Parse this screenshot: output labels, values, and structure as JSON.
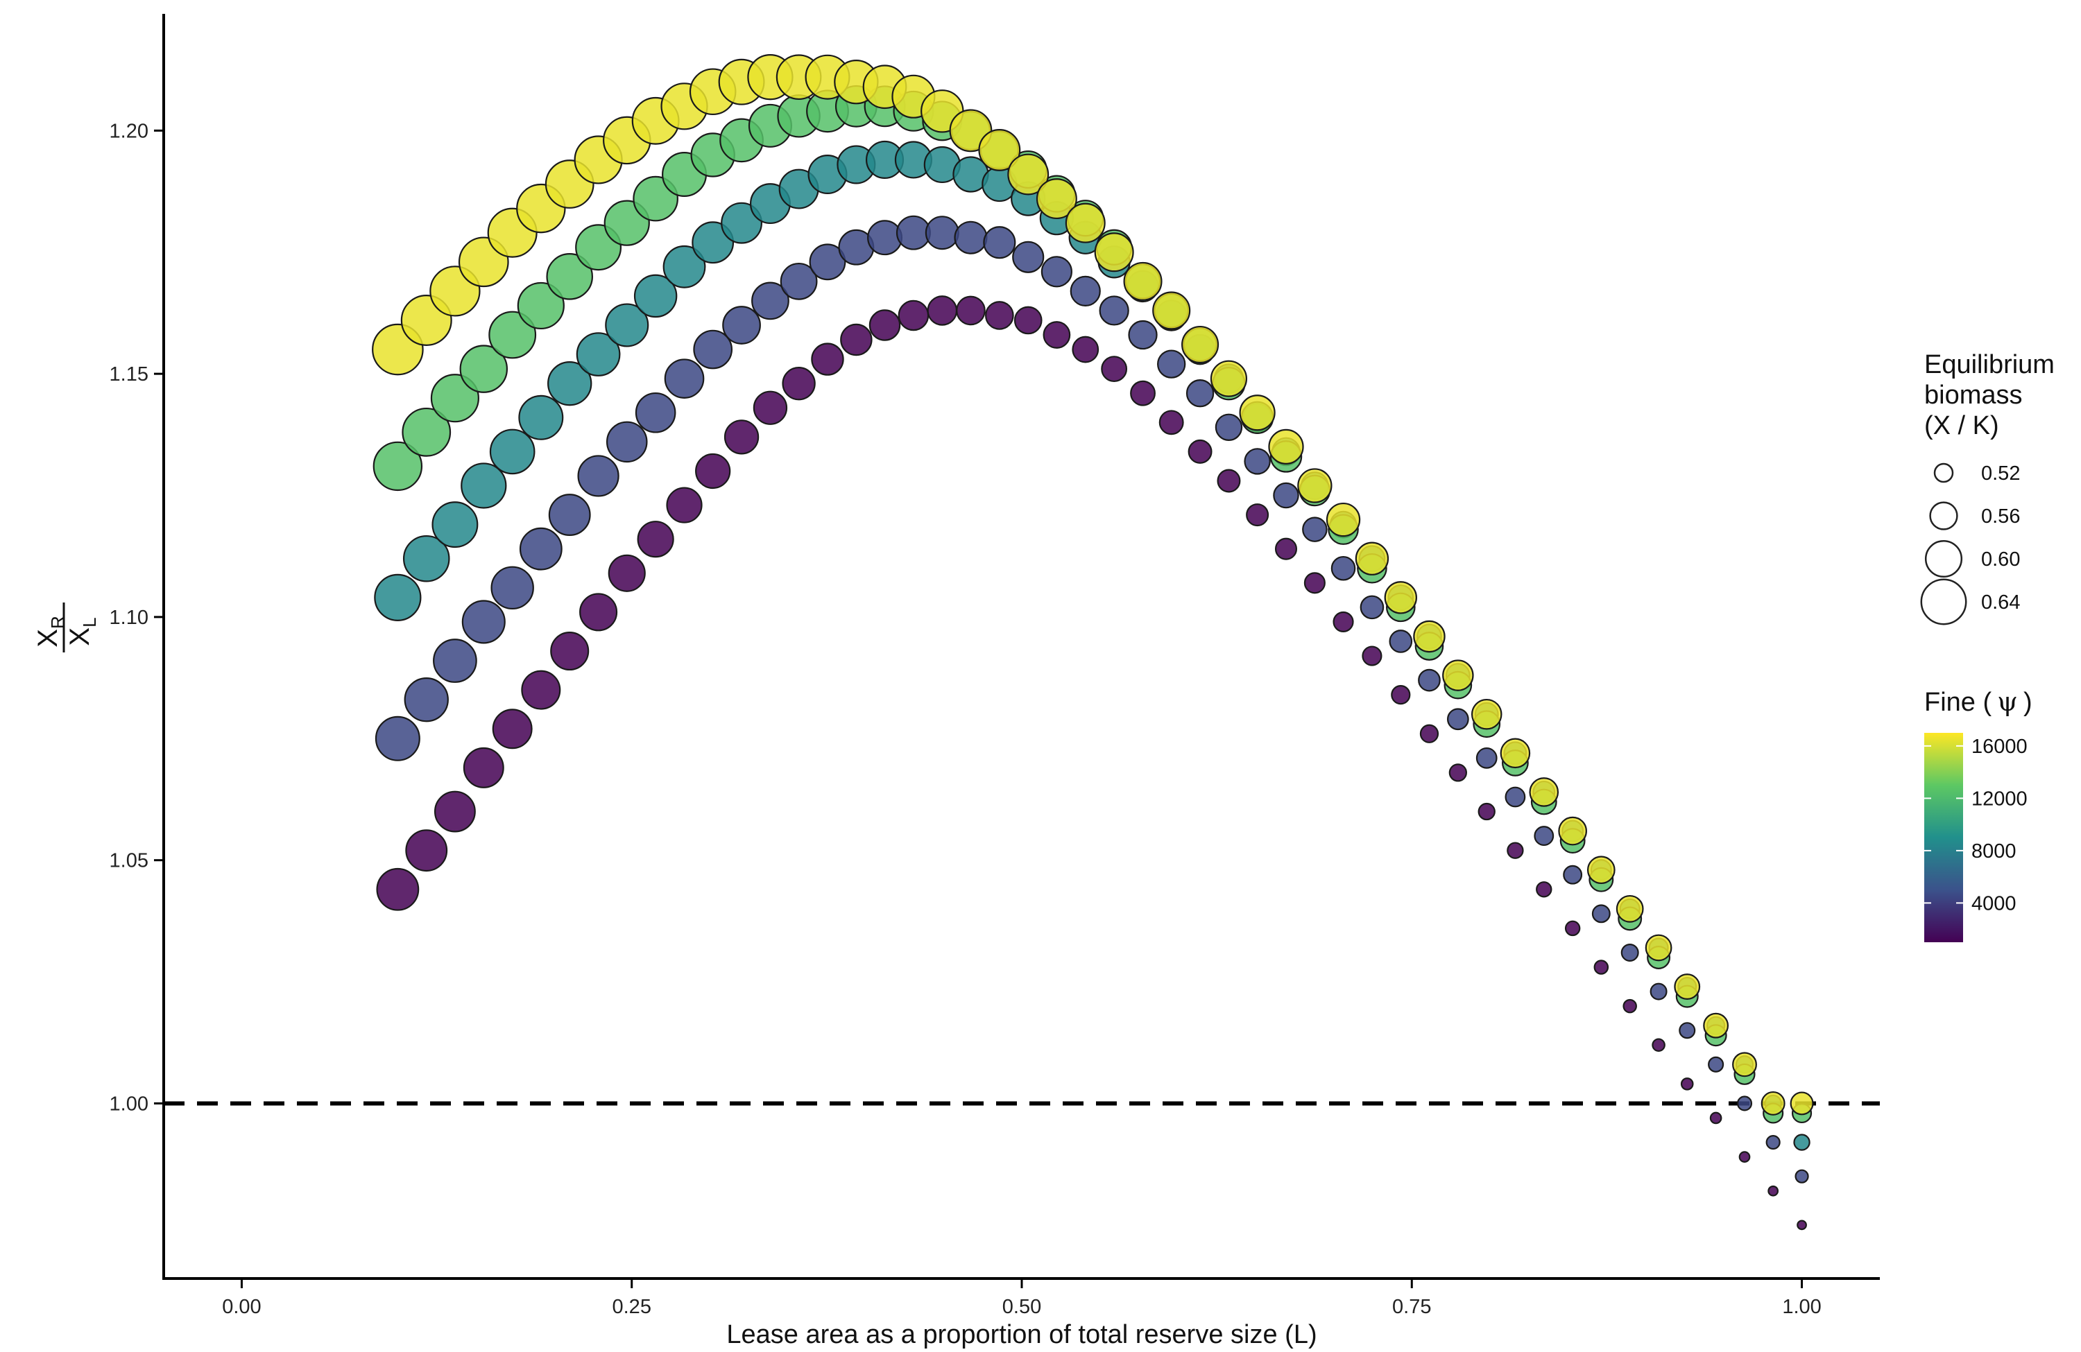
{
  "chart_data": {
    "type": "scatter",
    "title": "",
    "xlabel": "Lease area as a proportion of total reserve size (L)",
    "ylabel": {
      "numerator": "X",
      "numerator_sub": "R",
      "denominator": "X",
      "denominator_sub": "L"
    },
    "xlim": [
      -0.05,
      1.05
    ],
    "ylim": [
      0.964,
      1.224
    ],
    "xticks": [
      0.0,
      0.25,
      0.5,
      0.75,
      1.0
    ],
    "xtick_labels": [
      "0.00",
      "0.25",
      "0.50",
      "0.75",
      "1.00"
    ],
    "yticks": [
      1.0,
      1.05,
      1.1,
      1.15,
      1.2
    ],
    "ytick_labels": [
      "1.00",
      "1.05",
      "1.10",
      "1.15",
      "1.20"
    ],
    "reference_line": {
      "y": 1.0,
      "style": "dashed",
      "color": "#000000"
    },
    "grid": false,
    "legend_position": "right",
    "size_legend": {
      "title_lines": [
        "Equilibrium",
        "biomass",
        "(X / K)"
      ],
      "entries": [
        {
          "label": "0.52",
          "value": 0.52
        },
        {
          "label": "0.56",
          "value": 0.56
        },
        {
          "label": "0.60",
          "value": 0.6
        },
        {
          "label": "0.64",
          "value": 0.64
        }
      ]
    },
    "color_legend": {
      "title_prefix": "Fine (",
      "title_symbol": "ψ",
      "title_suffix": ")",
      "ticks": [
        {
          "label": "16000",
          "value": 16000
        },
        {
          "label": "12000",
          "value": 12000
        },
        {
          "label": "8000",
          "value": 8000
        },
        {
          "label": "4000",
          "value": 4000
        }
      ],
      "range": [
        1000,
        17000
      ],
      "colormap": "viridis"
    },
    "colormap_stops": [
      "#440154",
      "#3b528b",
      "#21908c",
      "#5dc863",
      "#fde725"
    ],
    "x": [
      0.1,
      0.1184,
      0.1367,
      0.1551,
      0.1735,
      0.1918,
      0.2102,
      0.2286,
      0.2469,
      0.2653,
      0.2837,
      0.302,
      0.3204,
      0.3388,
      0.3571,
      0.3755,
      0.3939,
      0.4122,
      0.4306,
      0.449,
      0.4673,
      0.4857,
      0.5041,
      0.5224,
      0.5408,
      0.5592,
      0.5776,
      0.5959,
      0.6143,
      0.6327,
      0.651,
      0.6694,
      0.6878,
      0.7061,
      0.7245,
      0.7429,
      0.7612,
      0.7796,
      0.798,
      0.8163,
      0.8347,
      0.8531,
      0.8714,
      0.8898,
      0.9082,
      0.9265,
      0.9449,
      0.9633,
      0.9816,
      1.0
    ],
    "series": [
      {
        "fine": 1000,
        "y": [
          1.044,
          1.052,
          1.06,
          1.069,
          1.077,
          1.085,
          1.093,
          1.101,
          1.109,
          1.116,
          1.123,
          1.13,
          1.137,
          1.143,
          1.148,
          1.153,
          1.157,
          1.16,
          1.162,
          1.163,
          1.163,
          1.162,
          1.161,
          1.158,
          1.155,
          1.151,
          1.146,
          1.14,
          1.134,
          1.128,
          1.121,
          1.114,
          1.107,
          1.099,
          1.092,
          1.084,
          1.076,
          1.068,
          1.06,
          1.052,
          1.044,
          1.036,
          1.028,
          1.02,
          1.012,
          1.004,
          0.997,
          0.989,
          0.982,
          0.975
        ],
        "biomass": [
          0.625,
          0.622,
          0.619,
          0.616,
          0.613,
          0.61,
          0.607,
          0.604,
          0.601,
          0.598,
          0.595,
          0.592,
          0.589,
          0.586,
          0.583,
          0.58,
          0.577,
          0.574,
          0.571,
          0.568,
          0.565,
          0.562,
          0.559,
          0.556,
          0.553,
          0.55,
          0.547,
          0.544,
          0.541,
          0.538,
          0.535,
          0.532,
          0.529,
          0.526,
          0.523,
          0.52,
          0.517,
          0.514,
          0.511,
          0.508,
          0.505,
          0.502,
          0.499,
          0.496,
          0.493,
          0.49,
          0.487,
          0.484,
          0.481,
          0.478
        ]
      },
      {
        "fine": 4500,
        "y": [
          1.075,
          1.083,
          1.091,
          1.099,
          1.106,
          1.114,
          1.121,
          1.129,
          1.136,
          1.142,
          1.149,
          1.155,
          1.16,
          1.165,
          1.169,
          1.173,
          1.176,
          1.178,
          1.179,
          1.179,
          1.178,
          1.177,
          1.174,
          1.171,
          1.167,
          1.163,
          1.158,
          1.152,
          1.146,
          1.139,
          1.132,
          1.125,
          1.118,
          1.11,
          1.102,
          1.095,
          1.087,
          1.079,
          1.071,
          1.063,
          1.055,
          1.047,
          1.039,
          1.031,
          1.023,
          1.015,
          1.008,
          1.0,
          0.992,
          0.985
        ],
        "biomass": [
          0.635,
          0.633,
          0.631,
          0.629,
          0.627,
          0.625,
          0.622,
          0.62,
          0.618,
          0.615,
          0.612,
          0.609,
          0.606,
          0.603,
          0.6,
          0.597,
          0.594,
          0.591,
          0.588,
          0.585,
          0.582,
          0.579,
          0.576,
          0.573,
          0.57,
          0.567,
          0.564,
          0.561,
          0.558,
          0.555,
          0.552,
          0.549,
          0.546,
          0.543,
          0.54,
          0.537,
          0.534,
          0.531,
          0.528,
          0.525,
          0.522,
          0.519,
          0.516,
          0.513,
          0.51,
          0.507,
          0.504,
          0.501,
          0.498,
          0.495
        ]
      },
      {
        "fine": 8500,
        "y": [
          1.104,
          1.112,
          1.119,
          1.127,
          1.134,
          1.141,
          1.148,
          1.154,
          1.16,
          1.166,
          1.172,
          1.177,
          1.181,
          1.185,
          1.188,
          1.191,
          1.193,
          1.194,
          1.194,
          1.193,
          1.191,
          1.189,
          1.186,
          1.182,
          1.178,
          1.173,
          1.168,
          1.162,
          1.155,
          1.149,
          1.141,
          1.134,
          1.127,
          1.119,
          1.112,
          1.104,
          1.096,
          1.088,
          1.08,
          1.072,
          1.064,
          1.056,
          1.048,
          1.04,
          1.032,
          1.024,
          1.016,
          1.008,
          1.0,
          0.992
        ],
        "biomass": [
          0.645,
          0.643,
          0.641,
          0.639,
          0.637,
          0.635,
          0.633,
          0.631,
          0.629,
          0.627,
          0.625,
          0.622,
          0.619,
          0.616,
          0.613,
          0.61,
          0.607,
          0.604,
          0.601,
          0.598,
          0.595,
          0.592,
          0.589,
          0.586,
          0.583,
          0.58,
          0.577,
          0.574,
          0.571,
          0.568,
          0.565,
          0.562,
          0.559,
          0.556,
          0.553,
          0.55,
          0.547,
          0.544,
          0.541,
          0.538,
          0.535,
          0.532,
          0.529,
          0.526,
          0.523,
          0.52,
          0.517,
          0.514,
          0.511,
          0.508
        ]
      },
      {
        "fine": 12500,
        "y": [
          1.131,
          1.138,
          1.145,
          1.151,
          1.158,
          1.164,
          1.17,
          1.176,
          1.181,
          1.186,
          1.191,
          1.195,
          1.198,
          1.201,
          1.203,
          1.204,
          1.205,
          1.205,
          1.204,
          1.202,
          1.2,
          1.196,
          1.192,
          1.187,
          1.182,
          1.176,
          1.169,
          1.163,
          1.156,
          1.148,
          1.141,
          1.133,
          1.126,
          1.118,
          1.11,
          1.102,
          1.094,
          1.086,
          1.078,
          1.07,
          1.062,
          1.054,
          1.046,
          1.038,
          1.03,
          1.022,
          1.014,
          1.006,
          0.998,
          0.998
        ],
        "biomass": [
          0.655,
          0.653,
          0.651,
          0.649,
          0.647,
          0.645,
          0.643,
          0.641,
          0.639,
          0.637,
          0.635,
          0.633,
          0.631,
          0.629,
          0.627,
          0.625,
          0.622,
          0.619,
          0.616,
          0.613,
          0.61,
          0.607,
          0.604,
          0.601,
          0.598,
          0.595,
          0.592,
          0.589,
          0.586,
          0.583,
          0.58,
          0.577,
          0.574,
          0.571,
          0.568,
          0.565,
          0.562,
          0.559,
          0.556,
          0.553,
          0.55,
          0.547,
          0.544,
          0.541,
          0.538,
          0.535,
          0.532,
          0.529,
          0.526,
          0.523
        ]
      },
      {
        "fine": 16500,
        "y": [
          1.155,
          1.161,
          1.167,
          1.173,
          1.179,
          1.184,
          1.189,
          1.194,
          1.198,
          1.202,
          1.205,
          1.208,
          1.21,
          1.211,
          1.211,
          1.211,
          1.21,
          1.209,
          1.207,
          1.204,
          1.2,
          1.196,
          1.191,
          1.186,
          1.181,
          1.175,
          1.169,
          1.163,
          1.156,
          1.149,
          1.142,
          1.135,
          1.127,
          1.12,
          1.112,
          1.104,
          1.096,
          1.088,
          1.08,
          1.072,
          1.064,
          1.056,
          1.048,
          1.04,
          1.032,
          1.024,
          1.016,
          1.008,
          1.0,
          1.0
        ],
        "biomass": [
          0.665,
          0.663,
          0.661,
          0.659,
          0.657,
          0.655,
          0.653,
          0.651,
          0.649,
          0.647,
          0.645,
          0.643,
          0.641,
          0.639,
          0.637,
          0.635,
          0.633,
          0.631,
          0.629,
          0.627,
          0.625,
          0.622,
          0.619,
          0.616,
          0.613,
          0.61,
          0.607,
          0.604,
          0.601,
          0.598,
          0.595,
          0.592,
          0.589,
          0.586,
          0.583,
          0.58,
          0.577,
          0.574,
          0.571,
          0.568,
          0.565,
          0.562,
          0.559,
          0.556,
          0.553,
          0.55,
          0.547,
          0.544,
          0.541,
          0.538
        ]
      }
    ]
  }
}
